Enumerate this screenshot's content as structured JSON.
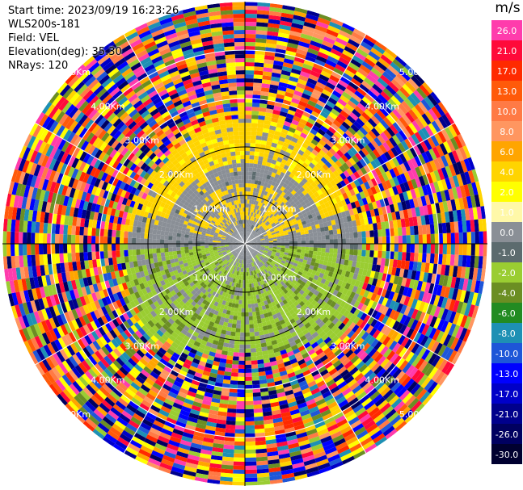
{
  "header": {
    "start_time": "Start time: 2023/09/19 16:23:26",
    "instrument": "WLS200s-181",
    "field": "Field: VEL",
    "elevation": "Elevation(deg): 35.30",
    "nrays": "NRays: 120"
  },
  "colorbar": {
    "unit": "m/s",
    "levels": [
      {
        "label": "26.0",
        "color": "#ff3cac"
      },
      {
        "label": "21.0",
        "color": "#ff0a3a"
      },
      {
        "label": "17.0",
        "color": "#ff2a00"
      },
      {
        "label": "13.0",
        "color": "#ff5a0a"
      },
      {
        "label": "10.0",
        "color": "#ff7a45"
      },
      {
        "label": "8.0",
        "color": "#ff9660"
      },
      {
        "label": "6.0",
        "color": "#ffa500"
      },
      {
        "label": "4.0",
        "color": "#ffd400"
      },
      {
        "label": "2.0",
        "color": "#ffff00"
      },
      {
        "label": "1.0",
        "color": "#fff8a8"
      },
      {
        "label": "0.0",
        "color": "#8a8f96"
      },
      {
        "label": "-1.0",
        "color": "#5c6b6e"
      },
      {
        "label": "-2.0",
        "color": "#9acd32"
      },
      {
        "label": "-4.0",
        "color": "#6b8e23"
      },
      {
        "label": "-6.0",
        "color": "#228b22"
      },
      {
        "label": "-8.0",
        "color": "#1e90b4"
      },
      {
        "label": "-10.0",
        "color": "#1e56d8"
      },
      {
        "label": "-13.0",
        "color": "#0000ff"
      },
      {
        "label": "-17.0",
        "color": "#0000c8"
      },
      {
        "label": "-21.0",
        "color": "#00008c"
      },
      {
        "label": "-26.0",
        "color": "#000060"
      },
      {
        "label": "-30.0",
        "color": "#000030"
      }
    ]
  },
  "range_labels": [
    "1.00Km",
    "2.00Km",
    "3.00Km",
    "4.00Km",
    "5.00Km"
  ]
}
